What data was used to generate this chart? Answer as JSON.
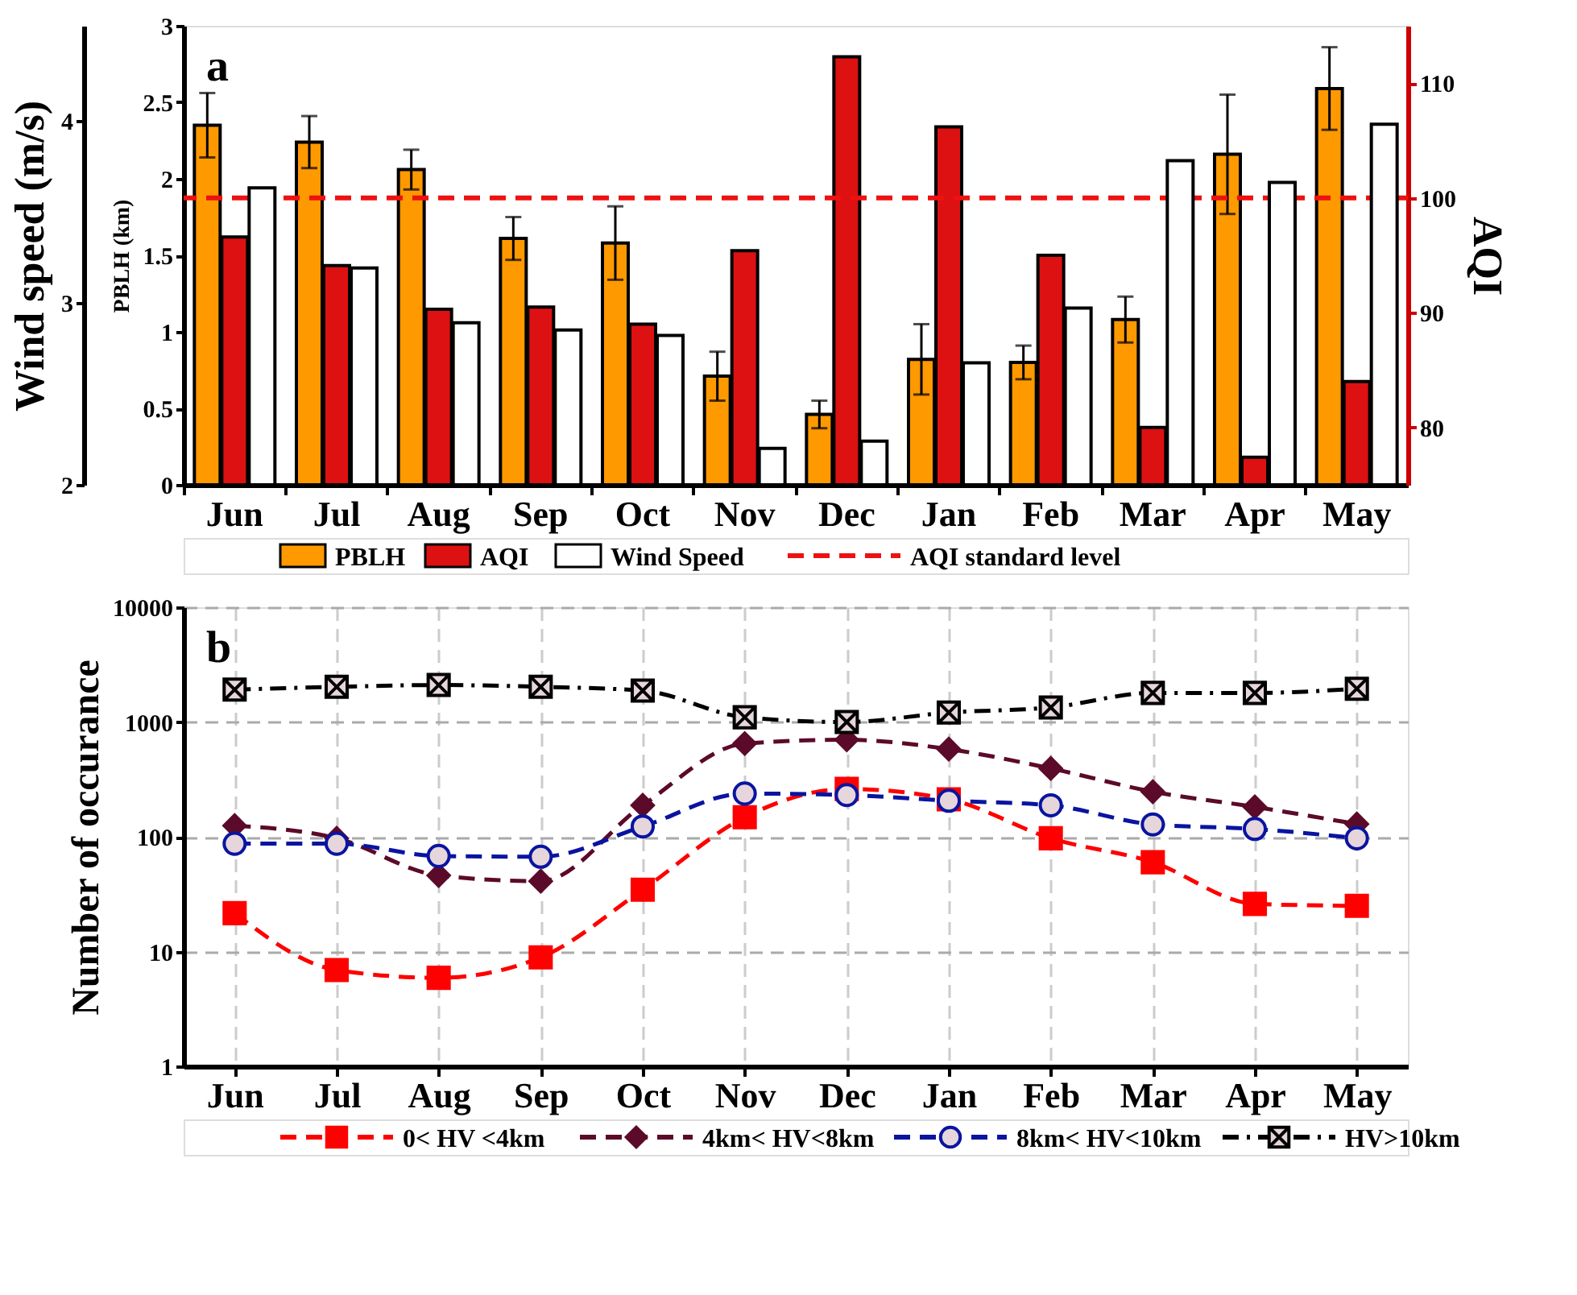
{
  "chart_data": [
    {
      "type": "bar",
      "title": "a",
      "categories": [
        "Jun",
        "Jul",
        "Aug",
        "Sep",
        "Oct",
        "Nov",
        "Dec",
        "Jan",
        "Feb",
        "Mar",
        "Apr",
        "May"
      ],
      "ylabel": "PBLH (km)",
      "ylim": [
        0,
        3
      ],
      "yticks": [
        0,
        0.5,
        1,
        1.5,
        2,
        2.5,
        3
      ],
      "y2label": "AQI",
      "y2lim": [
        75,
        115
      ],
      "y2ticks": [
        80,
        90,
        100,
        110
      ],
      "y3label": "Wind speed (m/s)",
      "y3lim": [
        2,
        4.52
      ],
      "y3ticks": [
        2,
        3,
        4
      ],
      "series": [
        {
          "name": "PBLH",
          "color": "#ff9900",
          "values": [
            2.35,
            2.24,
            2.06,
            1.61,
            1.58,
            0.71,
            0.46,
            0.82,
            0.8,
            1.08,
            2.16,
            2.59
          ],
          "errors": [
            0.21,
            0.17,
            0.13,
            0.14,
            0.24,
            0.16,
            0.09,
            0.23,
            0.11,
            0.15,
            0.39,
            0.27
          ]
        },
        {
          "name": "AQI",
          "color": "#dd1111",
          "axis": "y2",
          "values": [
            96.6,
            94.1,
            90.3,
            90.5,
            89.0,
            95.4,
            112.3,
            106.2,
            95.0,
            80.0,
            77.4,
            84.0
          ]
        },
        {
          "name": "Wind Speed",
          "color": "#ffffff",
          "axis": "y3",
          "values": [
            3.63,
            3.19,
            2.89,
            2.85,
            2.82,
            2.2,
            2.24,
            2.67,
            2.97,
            3.78,
            3.66,
            3.98
          ]
        }
      ],
      "ref_lines": [
        {
          "axis": "y2",
          "value": 100,
          "label": "AQI standard level",
          "color": "#ee1111",
          "line_style": "dashed"
        }
      ],
      "legend": "bottom"
    },
    {
      "type": "line",
      "title": "b",
      "categories": [
        "Jun",
        "Jul",
        "Aug",
        "Sep",
        "Oct",
        "Nov",
        "Dec",
        "Jan",
        "Feb",
        "Mar",
        "Apr",
        "May"
      ],
      "ylabel": "Number of occurance",
      "ylim": [
        1,
        10000
      ],
      "yticks": [
        1,
        10,
        100,
        1000,
        10000
      ],
      "log": true,
      "grid": true,
      "legend": "bottom",
      "series": [
        {
          "name": "0< HV <4km",
          "color": "#ff0000",
          "marker": "square",
          "line_style": "dashed",
          "values": [
            21.6,
            6.9,
            5.9,
            8.9,
            34.6,
            148,
            261,
            212,
            97,
            60,
            26,
            25
          ]
        },
        {
          "name": "4km< HV<8km",
          "color": "#5c0a2a",
          "marker": "diamond",
          "line_style": "dashed",
          "values": [
            125,
            97,
            46,
            41,
            188,
            649,
            700,
            580,
            394,
            247,
            182,
            129
          ]
        },
        {
          "name": "8km< HV<10km",
          "color": "#0a14a0",
          "marker": "circle",
          "line_style": "dashed",
          "values": [
            87,
            87,
            68,
            67,
            123,
            238,
            231,
            206,
            188,
            128,
            117,
            97
          ]
        },
        {
          "name": "HV>10km",
          "color": "#000000",
          "marker": "cross",
          "line_style": "dashdot",
          "values": [
            1914,
            2025,
            2100,
            2025,
            1877,
            1099,
            1000,
            1208,
            1339,
            1792,
            1792,
            1950
          ]
        }
      ]
    }
  ]
}
